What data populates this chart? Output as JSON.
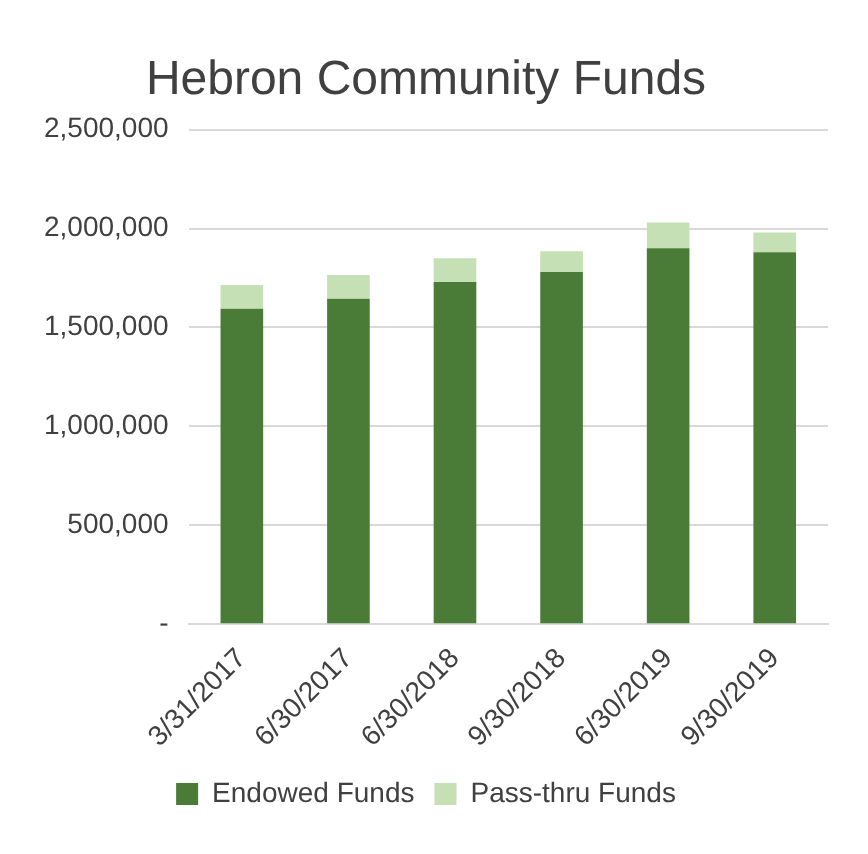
{
  "chart_data": {
    "type": "bar",
    "title": "Hebron Community Funds",
    "categories": [
      "3/31/2017",
      "6/30/2017",
      "6/30/2018",
      "9/30/2018",
      "6/30/2019",
      "9/30/2019"
    ],
    "series": [
      {
        "name": "Endowed Funds",
        "color": "#4a7c38",
        "values": [
          1595000,
          1645000,
          1730000,
          1780000,
          1900000,
          1880000
        ]
      },
      {
        "name": "Pass-thru Funds",
        "color": "#c5e0b4",
        "values": [
          120000,
          120000,
          120000,
          105000,
          130000,
          100000
        ]
      }
    ],
    "stacked": true,
    "ylim": [
      0,
      2500000
    ],
    "yticks": [
      {
        "value": 0,
        "label": "-"
      },
      {
        "value": 500000,
        "label": "500,000"
      },
      {
        "value": 1000000,
        "label": "1,000,000"
      },
      {
        "value": 1500000,
        "label": "1,500,000"
      },
      {
        "value": 2000000,
        "label": "2,000,000"
      },
      {
        "value": 2500000,
        "label": "2,500,000"
      }
    ],
    "grid": "y",
    "legend": "bottom"
  }
}
